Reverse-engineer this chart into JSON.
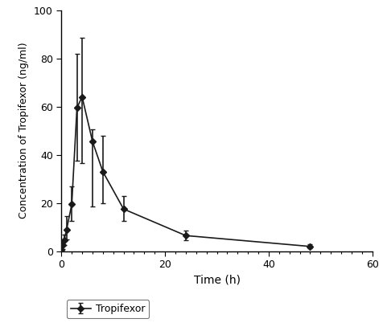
{
  "time": [
    0,
    0.25,
    0.5,
    1.0,
    2.0,
    3.0,
    4.0,
    6.0,
    8.0,
    12.0,
    24.0,
    48.0
  ],
  "concentration": [
    0.5,
    2.5,
    4.5,
    9.0,
    19.5,
    59.5,
    64.0,
    45.5,
    33.0,
    17.5,
    6.5,
    2.0
  ],
  "yerr_low": [
    0.3,
    1.5,
    2.0,
    4.0,
    7.0,
    22.0,
    27.5,
    27.0,
    13.0,
    5.0,
    1.8,
    0.6
  ],
  "yerr_high": [
    0.3,
    1.5,
    2.5,
    5.5,
    7.5,
    22.5,
    24.5,
    5.0,
    15.0,
    5.5,
    2.0,
    0.8
  ],
  "xlabel": "Time (h)",
  "ylabel": "Concentration of Tropifexor (ng/ml)",
  "xlim": [
    0,
    60
  ],
  "ylim": [
    0,
    100
  ],
  "xticks": [
    0,
    20,
    40,
    60
  ],
  "yticks": [
    0,
    20,
    40,
    60,
    80,
    100
  ],
  "legend_label": "Tropifexor",
  "line_color": "#1a1a1a",
  "marker": "D",
  "markersize": 4,
  "linewidth": 1.2,
  "capsize": 2.5,
  "capthick": 1.0
}
